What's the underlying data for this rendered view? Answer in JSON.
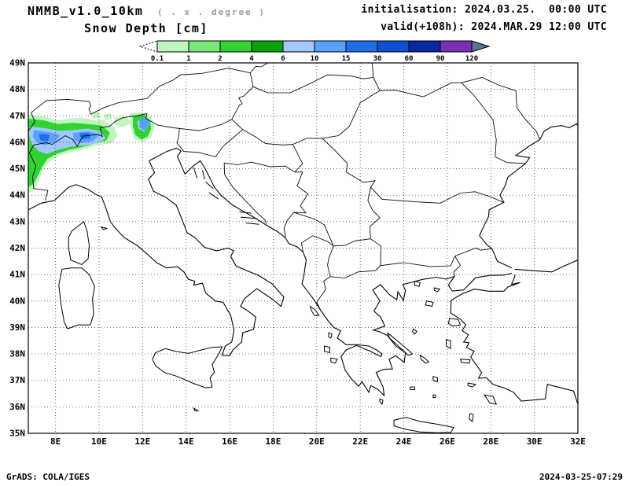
{
  "header": {
    "model": "NMMB_v1.0_10km",
    "resolution_note": "( . x . degree )",
    "variable": "Snow Depth [cm]",
    "init_label": "initialisation: 2024.03.25.  00:00 UTC",
    "valid_label": "valid(+108h): 2024.MAR.29 12:00 UTC"
  },
  "legend": {
    "values": [
      "0.1",
      "1",
      "2",
      "4",
      "6",
      "10",
      "15",
      "30",
      "60",
      "90",
      "120"
    ],
    "box_colors": [
      "#c0f5c0",
      "#78e678",
      "#32d232",
      "#0aa00a",
      "#a0c8ff",
      "#5aa0ff",
      "#1e6ee6",
      "#0f50d2",
      "#0a28a0",
      "#7830b4"
    ],
    "left_arrow_fill": "#ffffff",
    "right_arrow_fill": "#5a7486"
  },
  "map": {
    "lat_labels": [
      "49N",
      "48N",
      "47N",
      "46N",
      "45N",
      "44N",
      "43N",
      "42N",
      "41N",
      "40N",
      "39N",
      "38N",
      "37N",
      "36N",
      "35N"
    ],
    "lon_labels": [
      "8E",
      "10E",
      "12E",
      "14E",
      "16E",
      "18E",
      "20E",
      "22E",
      "24E",
      "26E",
      "28E",
      "30E",
      "32E"
    ]
  },
  "footer": {
    "left": "GrADS: COLA/IGES",
    "right": "2024-03-25-07:29"
  },
  "chart_data": {
    "type": "heatmap",
    "title": "Snow Depth [cm]",
    "model": "NMMB_v1.0_10km",
    "init_time": "2024.03.25. 00:00 UTC",
    "valid_time": "2024.MAR.29 12:00 UTC (+108h)",
    "levels_cm": [
      0.1,
      1,
      2,
      4,
      6,
      10,
      15,
      30,
      60,
      90,
      120
    ],
    "lon_range": [
      "8E",
      "32E"
    ],
    "lat_range": [
      "35N",
      "49N"
    ],
    "grid": "dotted, 1 deg lat x 2 deg lon",
    "depicted": "Snow depth shading over the Alps (~45N-47N, 7E-12.5E), greens 0.1-6 cm with blue cores 6-30 cm; rest of domain snow-free"
  }
}
